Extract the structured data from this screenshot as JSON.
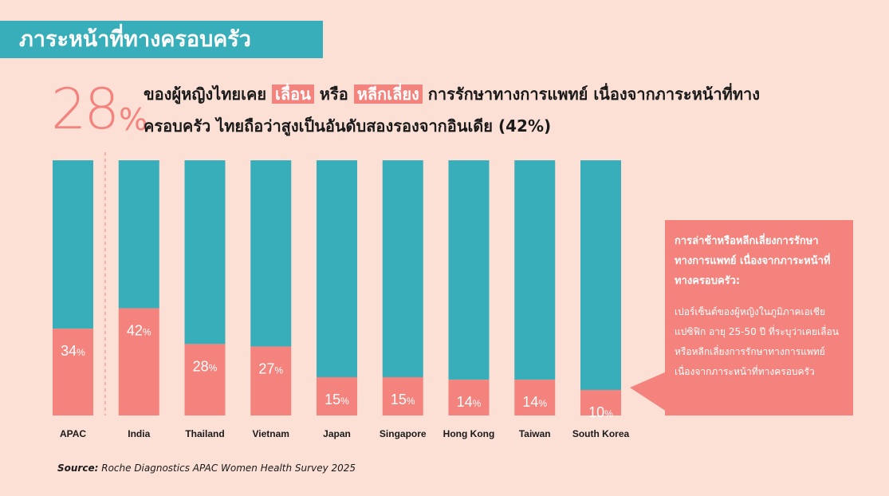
{
  "title": "ภาระหน้าที่ทางครอบครัว",
  "headline": {
    "big_value": "28",
    "big_unit": "%",
    "text_1": "ของผู้หญิงไทยเคย",
    "highlight_1": "เลื่อน",
    "text_2": "หรือ",
    "highlight_2": "หลีกเลี่ยง",
    "text_3": "การรักษาทางการแพทย์ เนื่องจากภาระหน้าที่ทาง",
    "line_2": "ครอบครัว ไทยถือว่าสูงเป็นอันดับสองรองจากอินเดีย (42%)"
  },
  "colors": {
    "background": "#fce0d6",
    "teal": "#37aeb9",
    "coral": "#f4837d",
    "text": "#1a1a1a"
  },
  "chart_data": {
    "type": "bar",
    "stacked_to_100": true,
    "categories": [
      "APAC",
      "India",
      "Thailand",
      "Vietnam",
      "Japan",
      "Singapore",
      "Hong Kong",
      "Taiwan",
      "South Korea"
    ],
    "values": [
      34,
      42,
      28,
      27,
      15,
      15,
      14,
      14,
      10
    ],
    "unit": "%",
    "ylim": [
      0,
      100
    ],
    "separator_after": "APAC"
  },
  "callout": {
    "title": "การล่าช้าหรือหลีกเลี่ยงการรักษาทางการแพทย์ เนื่องจากภาระหน้าที่ทางครอบครัว:",
    "body": "เปอร์เซ็นต์ของผู้หญิงในภูมิภาคเอเชียแปซิฟิก อายุ 25-50 ปี ที่ระบุว่าเคยเลื่อน หรือหลีกเลี่ยงการรักษาทางการแพทย์ เนื่องจากภาระหน้าที่ทางครอบครัว"
  },
  "source": {
    "label": "Source:",
    "text": "Roche Diagnostics APAC Women Health Survey 2025"
  }
}
